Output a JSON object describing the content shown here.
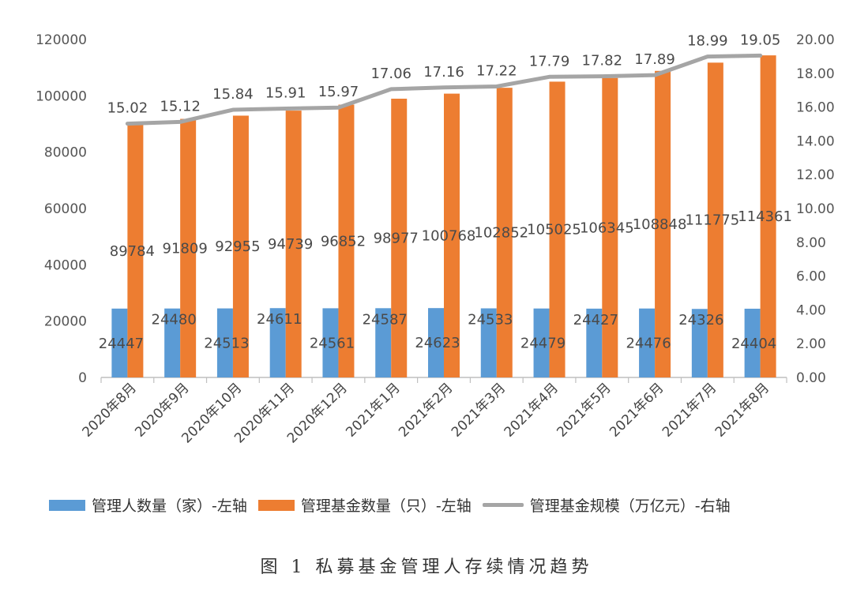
{
  "chart_data": {
    "type": "bar",
    "title": "图 1  私募基金管理人存续情况趋势",
    "categories": [
      "2020年8月",
      "2020年9月",
      "2020年10月",
      "2020年11月",
      "2020年12月",
      "2021年1月",
      "2021年2月",
      "2021年3月",
      "2021年4月",
      "2021年5月",
      "2021年6月",
      "2021年7月",
      "2021年8月"
    ],
    "series": [
      {
        "name": "管理人数量（家）-左轴",
        "type": "bar",
        "axis": "left",
        "color": "#5B9BD5",
        "values": [
          24447,
          24480,
          24513,
          24611,
          24561,
          24587,
          24623,
          24533,
          24479,
          24427,
          24476,
          24326,
          24404
        ]
      },
      {
        "name": "管理基金数量（只）-左轴",
        "type": "bar",
        "axis": "left",
        "color": "#ED7D31",
        "values": [
          89784,
          91809,
          92955,
          94739,
          96852,
          98977,
          100768,
          102852,
          105025,
          106345,
          108848,
          111775,
          114361
        ]
      },
      {
        "name": "管理基金规模（万亿元）-右轴",
        "type": "line",
        "axis": "right",
        "color": "#A5A5A5",
        "values": [
          15.02,
          15.12,
          15.84,
          15.91,
          15.97,
          17.06,
          17.16,
          17.22,
          17.79,
          17.82,
          17.89,
          18.99,
          19.05
        ]
      }
    ],
    "left_axis": {
      "min": 0,
      "max": 120000,
      "step": 20000,
      "ticks": [
        "0",
        "20000",
        "40000",
        "60000",
        "80000",
        "100000",
        "120000"
      ]
    },
    "right_axis": {
      "min": 0,
      "max": 20,
      "step": 2,
      "ticks": [
        "0.00",
        "2.00",
        "4.00",
        "6.00",
        "8.00",
        "10.00",
        "12.00",
        "14.00",
        "16.00",
        "18.00",
        "20.00"
      ]
    },
    "line_labels": [
      "15.02",
      "15.12",
      "15.84",
      "15.91",
      "15.97",
      "17.06",
      "17.16",
      "17.22",
      "17.79",
      "17.82",
      "17.89",
      "18.99",
      "19.05"
    ],
    "grid": false,
    "legend_position": "bottom"
  }
}
